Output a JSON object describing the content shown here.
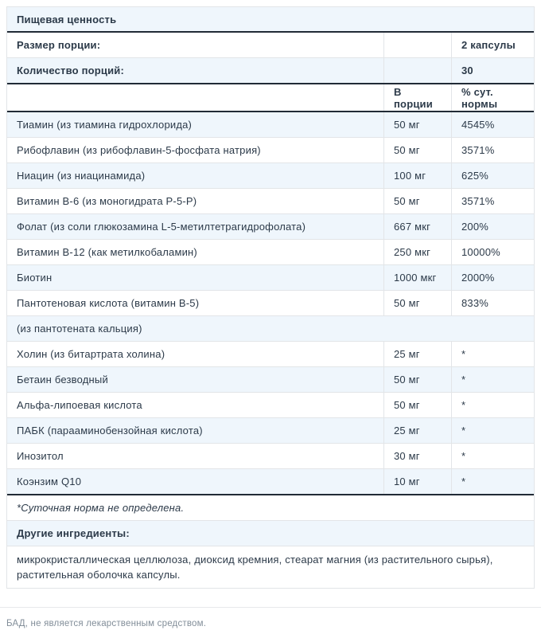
{
  "header": {
    "title": "Пищевая ценность"
  },
  "info_rows": [
    {
      "label": "Размер порции:",
      "value": "2 капсулы"
    },
    {
      "label": "Количество порций:",
      "value": "30"
    }
  ],
  "columns": {
    "amount": "В порции",
    "daily_value": "% сут. нормы"
  },
  "nutrients": [
    {
      "name": "Тиамин (из тиамина гидрохлорида)",
      "amount": "50 мг",
      "dv": "4545%"
    },
    {
      "name": "Рибофлавин (из рибофлавин-5-фосфата натрия)",
      "amount": "50 мг",
      "dv": "3571%"
    },
    {
      "name": "Ниацин (из ниацинамида)",
      "amount": "100 мг",
      "dv": "625%"
    },
    {
      "name": "Витамин B-6 (из моногидрата P-5-P)",
      "amount": "50 мг",
      "dv": "3571%"
    },
    {
      "name": "Фолат (из соли глюкозамина L-5-метилтетрагидрофолата)",
      "amount": "667 мкг",
      "dv": "200%"
    },
    {
      "name": "Витамин B-12 (как метилкобаламин)",
      "amount": "250 мкг",
      "dv": "10000%"
    },
    {
      "name": "Биотин",
      "amount": "1000 мкг",
      "dv": "2000%"
    },
    {
      "name": "Пантотеновая кислота (витамин B-5)",
      "amount": "50 мг",
      "dv": "833%"
    },
    {
      "name": "(из пантотената кальция)",
      "amount": "",
      "dv": ""
    },
    {
      "name": "Холин (из битартрата холина)",
      "amount": "25 мг",
      "dv": "*"
    },
    {
      "name": "Бетаин безводный",
      "amount": "50 мг",
      "dv": "*"
    },
    {
      "name": "Альфа-липоевая кислота",
      "amount": "50 мг",
      "dv": "*"
    },
    {
      "name": "ПАБК (парааминобензойная кислота)",
      "amount": "25 мг",
      "dv": "*"
    },
    {
      "name": "Инозитол",
      "amount": "30 мг",
      "dv": "*"
    },
    {
      "name": "Коэнзим Q10",
      "amount": "10 мг",
      "dv": "*"
    }
  ],
  "footnote": "*Суточная норма не определена.",
  "other_ingredients": {
    "label": "Другие ингредиенты:",
    "text": "микрокристаллическая целлюлоза, диоксид кремния, стеарат магния (из растительного сырья), растительная оболочка капсулы."
  },
  "disclaimer": "БАД, не является лекарственным средством.",
  "colors": {
    "stripe": "#eff6fc",
    "text": "#2c3a49",
    "dark_border": "#212b36",
    "light_border": "#e2e5e8",
    "muted_text": "#828e99"
  }
}
